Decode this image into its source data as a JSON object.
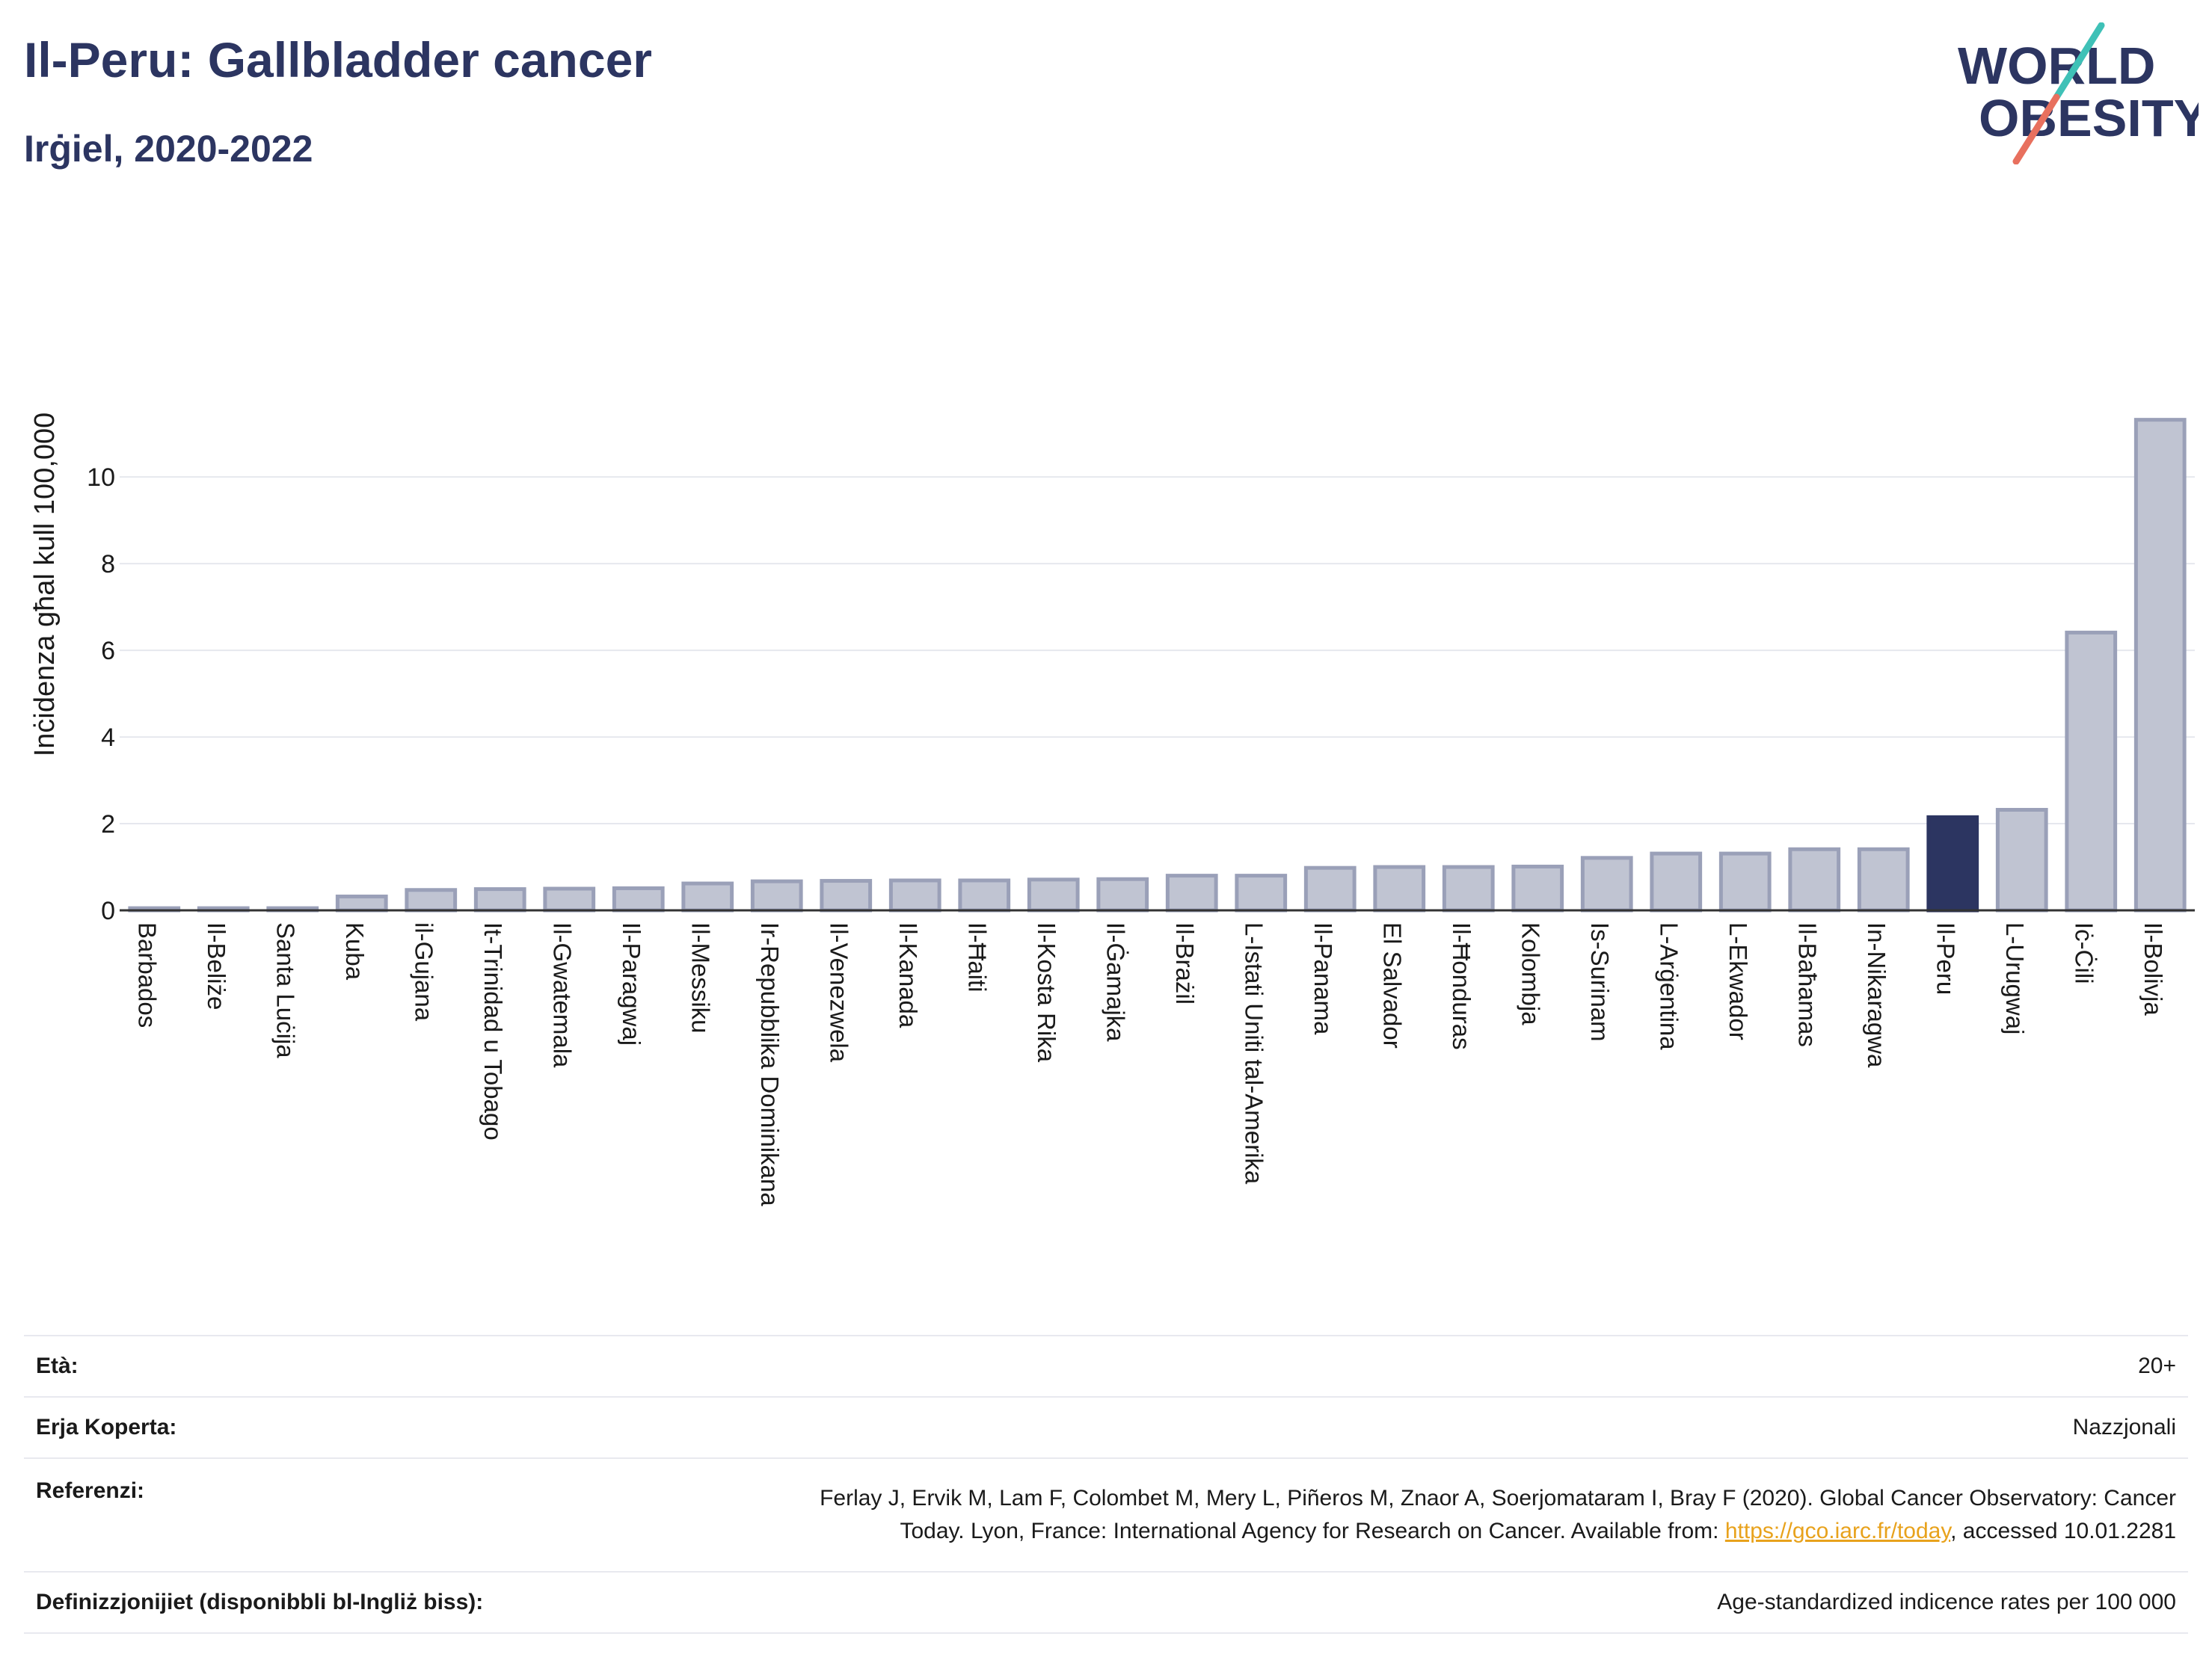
{
  "header": {
    "title": "Il-Peru: Gallbladder cancer",
    "subtitle": "Irġiel, 2020-2022"
  },
  "logo": {
    "line1": "WORLD",
    "line2": "OBESITY",
    "colors": {
      "text": "#2c3561",
      "accent_teal": "#3fc1b7",
      "accent_coral": "#e8705e"
    }
  },
  "colors": {
    "bar": "#c0c4d2",
    "bar_border": "#9aa0b8",
    "highlight": "#2c3561",
    "grid": "#e6e8ee",
    "axis_text": "#1a1a1a"
  },
  "chart_data": {
    "type": "bar",
    "title": "Il-Peru: Gallbladder cancer",
    "subtitle": "Irġiel, 2020-2022",
    "ylabel": "Inċidenza għal kull 100,000",
    "xlabel": "",
    "ylim": [
      0,
      11.4
    ],
    "yticks": [
      0,
      2,
      4,
      6,
      8,
      10
    ],
    "grid": true,
    "highlight": "Il-Peru",
    "categories": [
      "Barbados",
      "Il-Beliże",
      "Santa Luċija",
      "Kuba",
      "il-Gujana",
      "It-Trinidad u Tobago",
      "Il-Gwatemala",
      "Il-Paragwaj",
      "Il-Messiku",
      "Ir-Repubblika Dominikana",
      "Il-Venezwela",
      "Il-Kanada",
      "Il-Ħaiti",
      "Il-Kosta Rika",
      "Il-Ġamajka",
      "Il-Brażil",
      "L-Istati Uniti tal-Amerika",
      "Il-Panama",
      "El Salvador",
      "Il-Ħonduras",
      "Kolombja",
      "Is-Surinam",
      "L-Arġentina",
      "L-Ekwador",
      "Il-Baħamas",
      "In-Nikaragwa",
      "Il-Peru",
      "L-Urugwaj",
      "Iċ-Ċili",
      "Il-Bolivja"
    ],
    "values": [
      0.05,
      0.05,
      0.05,
      0.32,
      0.47,
      0.49,
      0.5,
      0.51,
      0.62,
      0.67,
      0.68,
      0.69,
      0.69,
      0.71,
      0.72,
      0.8,
      0.8,
      0.98,
      1.0,
      1.0,
      1.01,
      1.21,
      1.31,
      1.31,
      1.41,
      1.41,
      2.15,
      2.32,
      6.41,
      11.32
    ]
  },
  "meta": {
    "age_label": "Età:",
    "age_value": "20+",
    "coverage_label": "Erja Koperta:",
    "coverage_value": "Nazzjonali",
    "reference_label": "Referenzi:",
    "reference_text_1": "Ferlay J, Ervik M, Lam F, Colombet M, Mery L, Piñeros M, Znaor A, Soerjomataram I, Bray F (2020). Global Cancer Observatory: Cancer",
    "reference_text_2": "Today. Lyon, France: International Agency for Research on Cancer. Available from: ",
    "reference_link": "https://gco.iarc.fr/today",
    "reference_text_3": ", accessed 10.01.2281",
    "definitions_label": "Definizzjonijiet (disponibbli bl-Ingliż biss):",
    "definitions_value": "Age-standardized indicence rates per 100 000"
  }
}
